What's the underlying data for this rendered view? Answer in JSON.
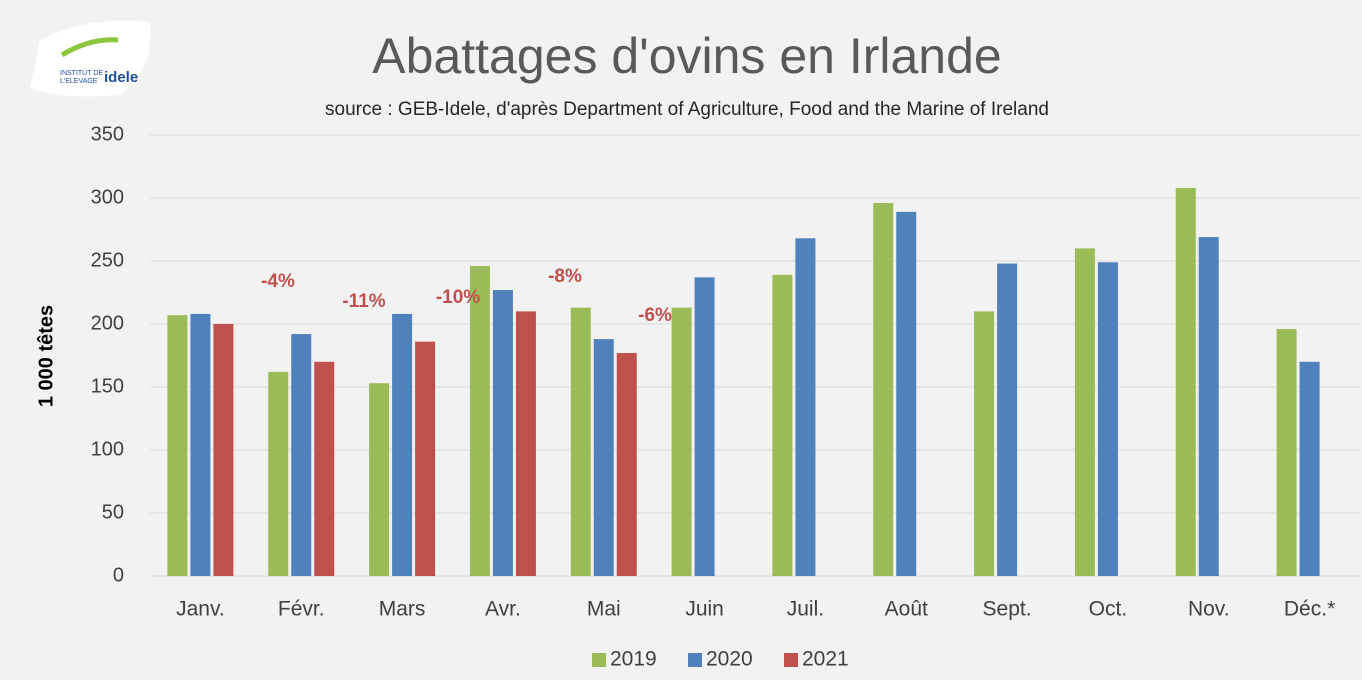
{
  "chart_data": {
    "type": "bar",
    "title": "Abattages d'ovins en Irlande",
    "subtitle": "source : GEB-Idele, d'après Department of Agriculture, Food and the Marine of Ireland",
    "ylabel": "1 000 têtes",
    "logo": {
      "line1": "INSTITUT DE",
      "line2": "L'ELEVAGE",
      "brand": "idele"
    },
    "categories": [
      "Janv.",
      "Févr.",
      "Mars",
      "Avr.",
      "Mai",
      "Juin",
      "Juil.",
      "Août",
      "Sept.",
      "Oct.",
      "Nov.",
      "Déc.*"
    ],
    "series": [
      {
        "name": "2019",
        "color": "#9bbb59",
        "values": [
          207,
          162,
          153,
          246,
          213,
          213,
          239,
          296,
          210,
          260,
          308,
          196
        ]
      },
      {
        "name": "2020",
        "color": "#4f81bd",
        "values": [
          208,
          192,
          208,
          227,
          188,
          237,
          268,
          289,
          248,
          249,
          269,
          170
        ]
      },
      {
        "name": "2021",
        "color": "#c0504d",
        "values": [
          200,
          170,
          186,
          210,
          177,
          null,
          null,
          null,
          null,
          null,
          null,
          null
        ]
      }
    ],
    "annotations": [
      "-4%",
      "-11%",
      "-10%",
      "-8%",
      "-6%"
    ],
    "ylim": [
      0,
      350
    ],
    "yticks": [
      0,
      50,
      100,
      150,
      200,
      250,
      300,
      350
    ],
    "grid": true,
    "legend": "bottom"
  }
}
